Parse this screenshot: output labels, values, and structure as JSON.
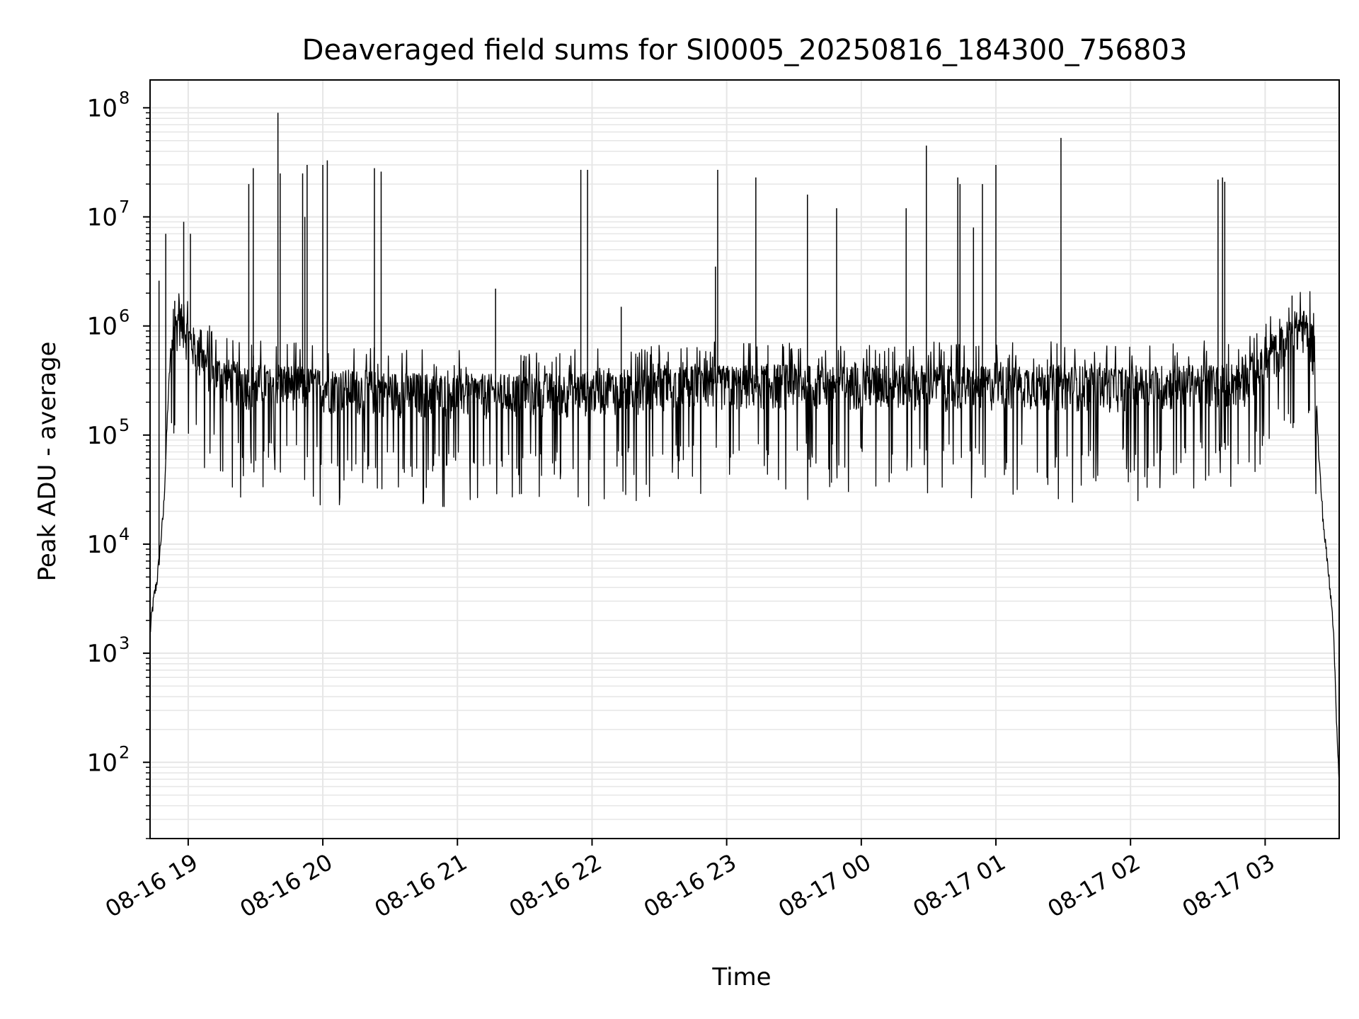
{
  "chart_data": {
    "type": "line",
    "title": "Deaveraged field sums for SI0005_20250816_184300_756803",
    "xlabel": "Time",
    "ylabel": "Peak ADU - average",
    "yscale": "log",
    "ylim": [
      20,
      180000000
    ],
    "xlim": [
      "2025-08-16 18:43",
      "2025-08-17 03:33"
    ],
    "grid": true,
    "legend": "none",
    "line_color": "#000000",
    "grid_color": "#e6e6e6",
    "x_ticks": [
      {
        "t": "2025-08-16 19:00",
        "label": "08-16 19"
      },
      {
        "t": "2025-08-16 20:00",
        "label": "08-16 20"
      },
      {
        "t": "2025-08-16 21:00",
        "label": "08-16 21"
      },
      {
        "t": "2025-08-16 22:00",
        "label": "08-16 22"
      },
      {
        "t": "2025-08-16 23:00",
        "label": "08-16 23"
      },
      {
        "t": "2025-08-17 00:00",
        "label": "08-17 00"
      },
      {
        "t": "2025-08-17 01:00",
        "label": "08-17 01"
      },
      {
        "t": "2025-08-17 02:00",
        "label": "08-17 02"
      },
      {
        "t": "2025-08-17 03:00",
        "label": "08-17 03"
      }
    ],
    "y_ticks": [
      {
        "v": 100,
        "exp": "2"
      },
      {
        "v": 1000,
        "exp": "3"
      },
      {
        "v": 10000,
        "exp": "4"
      },
      {
        "v": 100000,
        "exp": "5"
      },
      {
        "v": 1000000,
        "exp": "6"
      },
      {
        "v": 10000000,
        "exp": "7"
      },
      {
        "v": 100000000,
        "exp": "8"
      }
    ],
    "y_tick_base": "10",
    "series": [
      {
        "x": [
          "2025-08-16 18:43",
          "2025-08-16 18:44",
          "2025-08-16 18:45",
          "2025-08-16 18:46",
          "2025-08-16 18:47",
          "2025-08-16 18:48",
          "2025-08-16 18:49",
          "2025-08-16 18:50",
          "2025-08-16 18:51",
          "2025-08-16 18:52",
          "2025-08-16 18:54",
          "2025-08-16 18:56",
          "2025-08-16 18:58",
          "2025-08-16 19:00",
          "2025-08-16 19:04",
          "2025-08-16 19:08",
          "2025-08-16 19:12",
          "2025-08-16 19:20",
          "2025-08-16 19:28",
          "2025-08-16 19:40",
          "2025-08-16 19:52",
          "2025-08-16 20:05",
          "2025-08-16 20:20",
          "2025-08-16 20:35",
          "2025-08-16 20:50",
          "2025-08-16 21:05",
          "2025-08-16 21:20",
          "2025-08-16 21:35",
          "2025-08-16 21:50",
          "2025-08-16 22:05",
          "2025-08-16 22:20",
          "2025-08-16 22:35",
          "2025-08-16 22:50",
          "2025-08-16 23:05",
          "2025-08-16 23:20",
          "2025-08-16 23:35",
          "2025-08-16 23:50",
          "2025-08-17 00:05",
          "2025-08-17 00:20",
          "2025-08-17 00:35",
          "2025-08-17 00:50",
          "2025-08-17 01:05",
          "2025-08-17 01:20",
          "2025-08-17 01:35",
          "2025-08-17 01:50",
          "2025-08-17 02:05",
          "2025-08-17 02:20",
          "2025-08-17 02:35",
          "2025-08-17 02:50",
          "2025-08-17 03:00",
          "2025-08-17 03:06",
          "2025-08-17 03:12",
          "2025-08-17 03:16",
          "2025-08-17 03:20",
          "2025-08-17 03:22",
          "2025-08-17 03:24",
          "2025-08-17 03:26",
          "2025-08-17 03:28",
          "2025-08-17 03:30",
          "2025-08-17 03:31",
          "2025-08-17 03:32",
          "2025-08-17 03:33"
        ],
        "y": [
          1500,
          2500,
          3500,
          4500,
          7000,
          12000,
          20000,
          60000,
          200000,
          500000,
          900000,
          1200000,
          1000000,
          800000,
          600000,
          450000,
          380000,
          330000,
          300000,
          320000,
          290000,
          280000,
          270000,
          260000,
          255000,
          250000,
          250000,
          255000,
          260000,
          270000,
          280000,
          290000,
          300000,
          300000,
          310000,
          305000,
          300000,
          300000,
          310000,
          300000,
          290000,
          300000,
          310000,
          300000,
          290000,
          300000,
          300000,
          310000,
          320000,
          450000,
          650000,
          850000,
          1000000,
          900000,
          500000,
          60000,
          15000,
          6000,
          2500,
          800,
          200,
          60
        ]
      }
    ],
    "spikes": [
      {
        "x": "2025-08-16 18:47",
        "y": 2600000
      },
      {
        "x": "2025-08-16 18:50",
        "y": 7000000
      },
      {
        "x": "2025-08-16 18:54",
        "y": 1700000
      },
      {
        "x": "2025-08-16 18:58",
        "y": 9000000
      },
      {
        "x": "2025-08-16 19:01",
        "y": 7000000
      },
      {
        "x": "2025-08-16 19:27",
        "y": 20000000
      },
      {
        "x": "2025-08-16 19:29",
        "y": 28000000
      },
      {
        "x": "2025-08-16 19:40",
        "y": 90000000
      },
      {
        "x": "2025-08-16 19:41",
        "y": 25000000
      },
      {
        "x": "2025-08-16 19:51",
        "y": 25000000
      },
      {
        "x": "2025-08-16 19:52",
        "y": 10000000
      },
      {
        "x": "2025-08-16 19:53",
        "y": 30000000
      },
      {
        "x": "2025-08-16 20:00",
        "y": 30000000
      },
      {
        "x": "2025-08-16 20:02",
        "y": 33000000
      },
      {
        "x": "2025-08-16 20:23",
        "y": 28000000
      },
      {
        "x": "2025-08-16 20:26",
        "y": 26000000
      },
      {
        "x": "2025-08-16 21:17",
        "y": 2200000
      },
      {
        "x": "2025-08-16 21:55",
        "y": 27000000
      },
      {
        "x": "2025-08-16 21:58",
        "y": 27000000
      },
      {
        "x": "2025-08-16 22:13",
        "y": 1500000
      },
      {
        "x": "2025-08-16 22:55",
        "y": 3500000
      },
      {
        "x": "2025-08-16 22:56",
        "y": 27000000
      },
      {
        "x": "2025-08-16 23:13",
        "y": 23000000
      },
      {
        "x": "2025-08-16 23:36",
        "y": 16000000
      },
      {
        "x": "2025-08-16 23:49",
        "y": 12000000
      },
      {
        "x": "2025-08-17 00:20",
        "y": 12000000
      },
      {
        "x": "2025-08-17 00:29",
        "y": 45000000
      },
      {
        "x": "2025-08-17 00:43",
        "y": 23000000
      },
      {
        "x": "2025-08-17 00:44",
        "y": 20000000
      },
      {
        "x": "2025-08-17 00:50",
        "y": 8000000
      },
      {
        "x": "2025-08-17 00:54",
        "y": 20000000
      },
      {
        "x": "2025-08-17 01:00",
        "y": 30000000
      },
      {
        "x": "2025-08-17 01:29",
        "y": 53000000
      },
      {
        "x": "2025-08-17 02:39",
        "y": 22000000
      },
      {
        "x": "2025-08-17 02:41",
        "y": 23000000
      },
      {
        "x": "2025-08-17 02:42",
        "y": 21000000
      },
      {
        "x": "2025-08-17 03:12",
        "y": 1900000
      }
    ]
  }
}
